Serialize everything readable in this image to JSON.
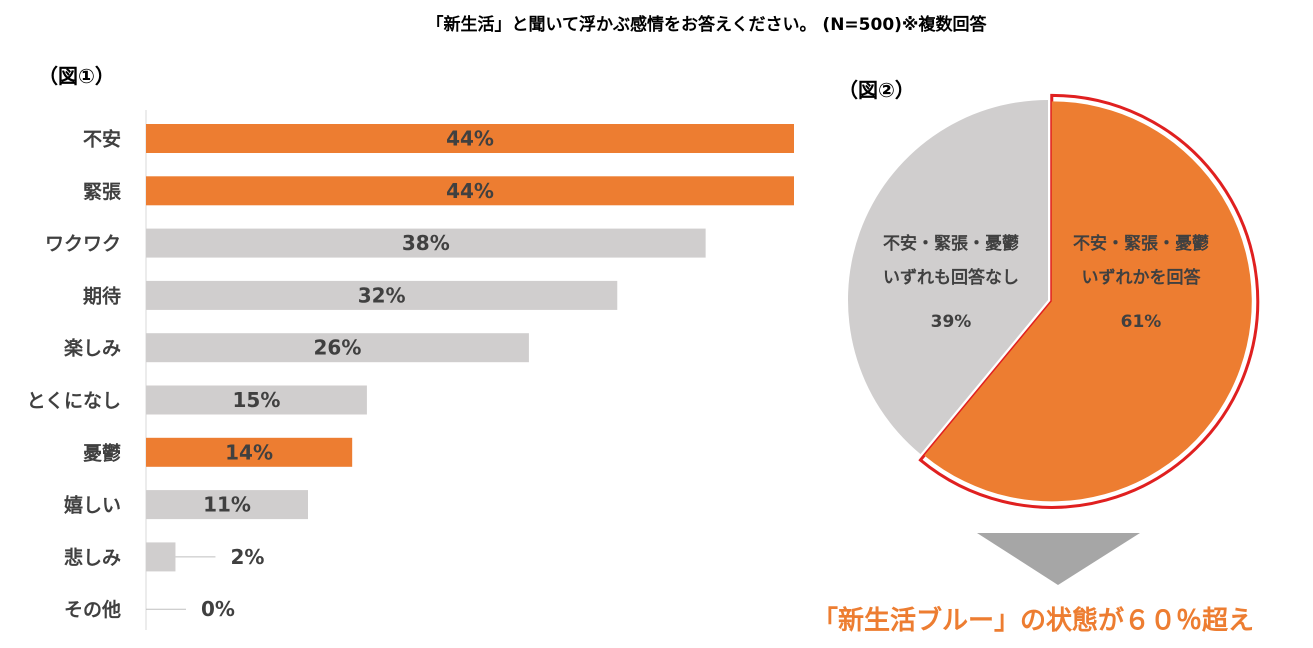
{
  "title": "「新生活」と聞いて浮かぶ感情をお答えください。 (N=500)※複数回答",
  "fig1_label": "（図①）",
  "fig2_label": "（図②）",
  "colors": {
    "highlight": "#ED7D31",
    "neutral": "#D0CECE",
    "outline": "#E02020",
    "text": "#404040"
  },
  "chart_data": [
    {
      "type": "bar",
      "orientation": "horizontal",
      "categories": [
        "不安",
        "緊張",
        "ワクワク",
        "期待",
        "楽しみ",
        "とくになし",
        "憂鬱",
        "嬉しい",
        "悲しみ",
        "その他"
      ],
      "values": [
        44,
        44,
        38,
        32,
        26,
        15,
        14,
        11,
        2,
        0
      ],
      "labels": [
        "44%",
        "44%",
        "38%",
        "32%",
        "26%",
        "15%",
        "14%",
        "11%",
        "2%",
        "0%"
      ],
      "highlighted": [
        true,
        true,
        false,
        false,
        false,
        false,
        true,
        false,
        false,
        false
      ],
      "unit": "%",
      "xlim": [
        0,
        44
      ],
      "grid": false
    },
    {
      "type": "pie",
      "slices": [
        {
          "label_line1": "不安・緊張・憂鬱",
          "label_line2": "いずれかを回答",
          "value": 61,
          "value_label": "61%",
          "highlighted": true
        },
        {
          "label_line1": "不安・緊張・憂鬱",
          "label_line2": "いずれも回答なし",
          "value": 39,
          "value_label": "39%",
          "highlighted": false
        }
      ]
    }
  ],
  "conclusion": "「新生活ブルー」の状態が６０％超え"
}
